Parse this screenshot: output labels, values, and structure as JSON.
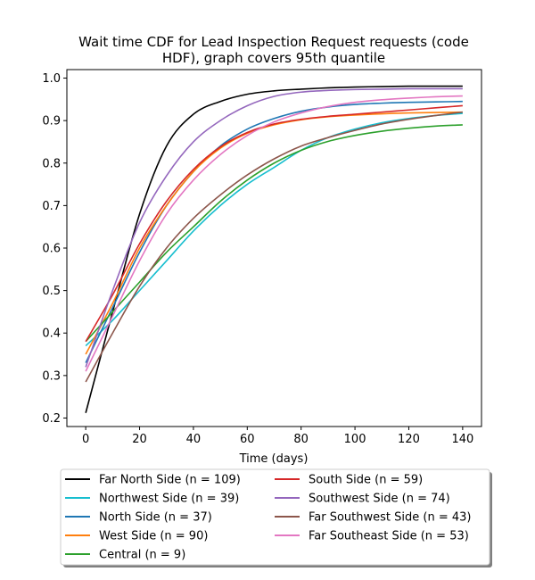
{
  "chart_data": {
    "type": "line",
    "title_lines": [
      "Wait time CDF for Lead Inspection Request  requests (code",
      "HDF), graph covers 95th quantile"
    ],
    "xlabel": "Time (days)",
    "ylabel": "",
    "xlim": [
      -7,
      147
    ],
    "ylim": [
      0.18,
      1.02
    ],
    "xticks": [
      0,
      20,
      40,
      60,
      80,
      100,
      120,
      140
    ],
    "yticks": [
      0.2,
      0.3,
      0.4,
      0.5,
      0.6,
      0.7,
      0.8,
      0.9,
      1.0
    ],
    "grid": false,
    "legend_position": "bottom-center",
    "x": [
      0,
      10,
      20,
      30,
      40,
      50,
      60,
      70,
      80,
      90,
      100,
      110,
      120,
      130,
      140
    ],
    "series": [
      {
        "name": "Far North Side (n = 109)",
        "color": "#000000",
        "values": [
          0.212,
          0.45,
          0.68,
          0.84,
          0.915,
          0.945,
          0.962,
          0.97,
          0.974,
          0.977,
          0.979,
          0.98,
          0.981,
          0.981,
          0.981
        ]
      },
      {
        "name": "Northwest Side (n = 39)",
        "color": "#17becf",
        "values": [
          0.37,
          0.43,
          0.5,
          0.57,
          0.64,
          0.7,
          0.75,
          0.79,
          0.83,
          0.86,
          0.88,
          0.895,
          0.905,
          0.912,
          0.917
        ]
      },
      {
        "name": "North Side (n = 37)",
        "color": "#1f77b4",
        "values": [
          0.33,
          0.46,
          0.59,
          0.7,
          0.78,
          0.84,
          0.88,
          0.905,
          0.922,
          0.932,
          0.938,
          0.941,
          0.943,
          0.944,
          0.945
        ]
      },
      {
        "name": "West Side (n = 90)",
        "color": "#ff7f0e",
        "values": [
          0.35,
          0.47,
          0.6,
          0.7,
          0.78,
          0.835,
          0.87,
          0.89,
          0.902,
          0.909,
          0.913,
          0.916,
          0.918,
          0.919,
          0.92
        ]
      },
      {
        "name": "Central (n = 9)",
        "color": "#2ca02c",
        "values": [
          0.38,
          0.45,
          0.52,
          0.59,
          0.65,
          0.71,
          0.76,
          0.8,
          0.83,
          0.851,
          0.865,
          0.875,
          0.882,
          0.887,
          0.89
        ]
      },
      {
        "name": "South Side (n = 59)",
        "color": "#d62728",
        "values": [
          0.38,
          0.49,
          0.61,
          0.71,
          0.785,
          0.838,
          0.872,
          0.892,
          0.903,
          0.91,
          0.915,
          0.92,
          0.925,
          0.93,
          0.935
        ]
      },
      {
        "name": "Southwest Side (n = 74)",
        "color": "#9467bd",
        "values": [
          0.32,
          0.5,
          0.66,
          0.77,
          0.85,
          0.9,
          0.935,
          0.957,
          0.967,
          0.971,
          0.973,
          0.974,
          0.975,
          0.975,
          0.975
        ]
      },
      {
        "name": "Far Southwest Side (n = 43)",
        "color": "#8c564b",
        "values": [
          0.285,
          0.4,
          0.51,
          0.6,
          0.67,
          0.725,
          0.772,
          0.81,
          0.84,
          0.86,
          0.877,
          0.892,
          0.903,
          0.912,
          0.92
        ]
      },
      {
        "name": "Far Southeast Side (n = 53)",
        "color": "#e377c2",
        "values": [
          0.31,
          0.44,
          0.57,
          0.68,
          0.76,
          0.82,
          0.865,
          0.897,
          0.918,
          0.933,
          0.943,
          0.949,
          0.953,
          0.956,
          0.958
        ]
      }
    ]
  }
}
